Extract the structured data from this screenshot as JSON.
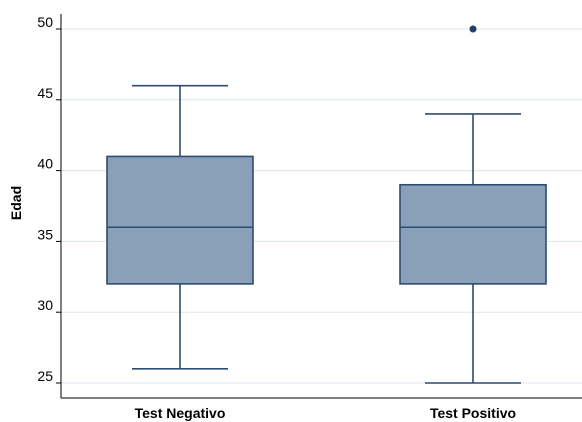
{
  "chart_data": {
    "type": "boxplot",
    "title": "",
    "xlabel": "",
    "ylabel": "Edad",
    "ylim": [
      24.2,
      51.2
    ],
    "yticks": [
      25,
      30,
      35,
      40,
      45,
      50
    ],
    "grid": true,
    "categories": [
      "Test Negativo",
      "Test Positivo"
    ],
    "boxes": [
      {
        "category": "Test Negativo",
        "whisker_low": 26,
        "q1": 32,
        "median": 36,
        "q3": 41,
        "whisker_high": 46,
        "outliers": []
      },
      {
        "category": "Test Positivo",
        "whisker_low": 25,
        "q1": 32,
        "median": 36,
        "q3": 39,
        "whisker_high": 44,
        "outliers": [
          50
        ]
      }
    ],
    "colors": {
      "box_fill": "#8aa0b8",
      "box_stroke": "#2e4c6e",
      "grid": "#dbe7ec",
      "axis": "#000000",
      "outlier": "#1f3f66"
    }
  }
}
